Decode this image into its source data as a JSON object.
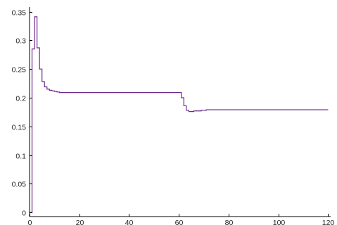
{
  "chart_data": {
    "type": "line",
    "title": "",
    "xlabel": "",
    "ylabel": "",
    "xlim": [
      0,
      121
    ],
    "ylim": [
      -0.007,
      0.358
    ],
    "grid": false,
    "xticks": [
      0,
      20,
      40,
      60,
      80,
      100,
      120
    ],
    "xtick_labels": [
      "0",
      "20",
      "40",
      "60",
      "80",
      "100",
      "120"
    ],
    "yticks": [
      0,
      0.05,
      0.1,
      0.15,
      0.2,
      0.25,
      0.3,
      0.35
    ],
    "ytick_labels": [
      "0",
      "0.05",
      "0.1",
      "0.15",
      "0.2",
      "0.25",
      "0.3",
      "0.35"
    ],
    "series": [
      {
        "color": "#6b2a8a",
        "step": true,
        "x": [
          0,
          1,
          2,
          3,
          4,
          5,
          6,
          7,
          8,
          9,
          10,
          11,
          12,
          15,
          20,
          25,
          30,
          35,
          40,
          45,
          50,
          55,
          60,
          61,
          62,
          63,
          64,
          65,
          66,
          67,
          68,
          69,
          70,
          71,
          72,
          73,
          80,
          90,
          100,
          110,
          120
        ],
        "y": [
          0,
          0.285,
          0.341,
          0.287,
          0.25,
          0.228,
          0.219,
          0.215,
          0.213,
          0.212,
          0.211,
          0.21,
          0.209,
          0.209,
          0.209,
          0.209,
          0.209,
          0.209,
          0.209,
          0.209,
          0.209,
          0.209,
          0.209,
          0.2,
          0.186,
          0.178,
          0.176,
          0.176,
          0.177,
          0.177,
          0.177,
          0.178,
          0.178,
          0.179,
          0.179,
          0.179,
          0.179,
          0.179,
          0.179,
          0.179,
          0.179
        ]
      }
    ]
  }
}
